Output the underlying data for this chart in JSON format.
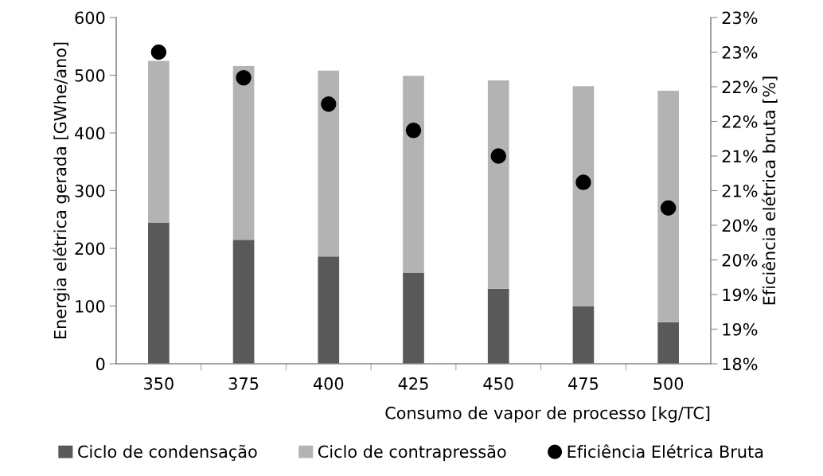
{
  "chart_data": {
    "type": "bar",
    "stacked": true,
    "xlabel": "Consumo de vapor de processo [kg/TC]",
    "ylabel": "Energia elétrica gerada [GWhe/ano]",
    "y2label": "Eficiência elétrica bruta [%]",
    "categories": [
      "350",
      "375",
      "400",
      "425",
      "450",
      "475",
      "500"
    ],
    "series": [
      {
        "name": "Ciclo de condensação",
        "color": "#595959",
        "values": [
          245,
          215,
          186,
          158,
          130,
          100,
          72
        ]
      },
      {
        "name": "Ciclo de contrapressão",
        "color": "#b3b3b3",
        "values": [
          280,
          301,
          322,
          341,
          361,
          381,
          401
        ]
      },
      {
        "name": "Eficiência Elétrica Bruta",
        "type": "scatter",
        "axis": "y2",
        "color": "#000000",
        "values": [
          22.5,
          22.13,
          21.75,
          21.37,
          21.0,
          20.62,
          20.25
        ]
      }
    ],
    "ylim": [
      0,
      600
    ],
    "yticks": [
      0,
      100,
      200,
      300,
      400,
      500,
      600
    ],
    "y2lim": [
      18,
      23
    ],
    "y2ticks": [
      {
        "value": 18,
        "label": "18%"
      },
      {
        "value": 18.5,
        "label": "19%"
      },
      {
        "value": 19,
        "label": "19%"
      },
      {
        "value": 19.5,
        "label": "20%"
      },
      {
        "value": 20,
        "label": "20%"
      },
      {
        "value": 20.5,
        "label": "21%"
      },
      {
        "value": 21,
        "label": "21%"
      },
      {
        "value": 21.5,
        "label": "22%"
      },
      {
        "value": 22,
        "label": "22%"
      },
      {
        "value": 22.5,
        "label": "23%"
      },
      {
        "value": 23,
        "label": "23%"
      }
    ],
    "marker": "circle",
    "grid": false,
    "legend": "bottom"
  }
}
